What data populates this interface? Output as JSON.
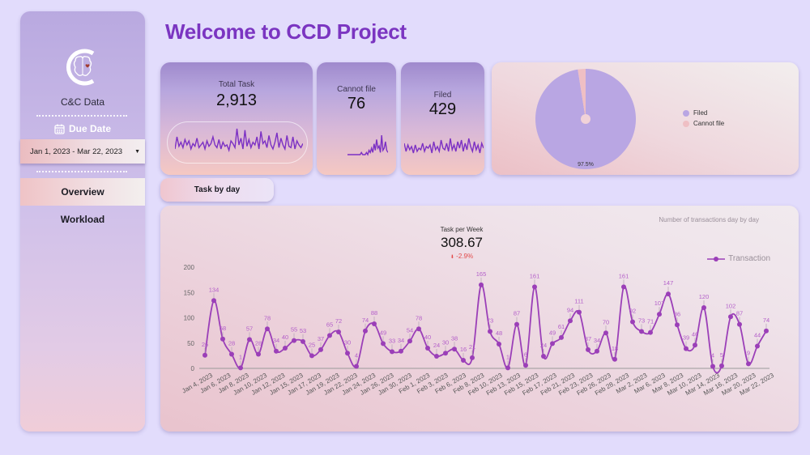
{
  "sidebar": {
    "brand": "C&C Data",
    "logo_icon": "brain-c-logo-icon",
    "due_date_label": "Due Date",
    "date_range": "Jan 1, 2023 - Mar 22, 2023",
    "nav": [
      {
        "label": "Overview",
        "active": true
      },
      {
        "label": "Workload",
        "active": false
      }
    ]
  },
  "header": {
    "title": "Welcome to CCD Project"
  },
  "kpis": {
    "total_task": {
      "label": "Total Task",
      "value": "2,913"
    },
    "cannot_file": {
      "label": "Cannot file",
      "value": "76"
    },
    "filed": {
      "label": "Filed",
      "value": "429"
    }
  },
  "pie": {
    "slices": [
      {
        "label": "Filed",
        "percent": 97.5,
        "color": "#b9a6e3"
      },
      {
        "label": "Cannot file",
        "percent": 2.5,
        "color": "#efbfc4"
      }
    ],
    "center_label": "97.5%"
  },
  "tab": {
    "label": "Task by day"
  },
  "scorecard": {
    "label": "Task per Week",
    "value": "308.67",
    "delta": "-2.9%",
    "delta_color": "#e24a4a"
  },
  "chart_note": "Number of transactions day by day",
  "colors": {
    "line": "#9b3fb8",
    "label": "#b35fc9",
    "accent": "#7b35c1"
  },
  "chart_data": {
    "type": "line",
    "title": "Number of transactions day by day",
    "xlabel": "",
    "ylabel": "",
    "ylim": [
      0,
      200
    ],
    "yticks": [
      0,
      50,
      100,
      150,
      200
    ],
    "grid": false,
    "legend": "top-right",
    "series": [
      {
        "name": "Transaction",
        "values": [
          26,
          134,
          58,
          28,
          1,
          57,
          28,
          78,
          34,
          40,
          55,
          53,
          25,
          37,
          65,
          72,
          30,
          4,
          74,
          88,
          49,
          33,
          34,
          54,
          78,
          40,
          24,
          30,
          38,
          16,
          21,
          165,
          73,
          48,
          1,
          87,
          6,
          161,
          24,
          49,
          61,
          94,
          111,
          37,
          34,
          70,
          18,
          161,
          92,
          73,
          71,
          107,
          147,
          86,
          39,
          46,
          120,
          4,
          5,
          102,
          87,
          9,
          44,
          74
        ]
      }
    ],
    "tick_labels": [
      {
        "index": 0,
        "label": "Jan 4, 2023"
      },
      {
        "index": 3,
        "label": "Jan 6, 2023"
      },
      {
        "index": 6,
        "label": "Jan 8, 2023"
      },
      {
        "index": 9,
        "label": "Jan 10, 2023"
      },
      {
        "index": 12,
        "label": "Jan 12, 2023"
      },
      {
        "index": 15,
        "label": "Jan 15, 2023"
      },
      {
        "index": 17,
        "label": "Jan 17, 2023"
      },
      {
        "index": 20,
        "label": "Jan 19, 2023"
      },
      {
        "index": 23,
        "label": "Jan 22, 2023"
      },
      {
        "index": 26,
        "label": "Jan 24, 2023"
      },
      {
        "index": 29,
        "label": "Jan 26, 2023"
      },
      {
        "index": 32,
        "label": "Jan 30, 2023"
      },
      {
        "index": 35,
        "label": "Feb 1, 2023"
      },
      {
        "index": 38,
        "label": "Feb 3, 2023"
      },
      {
        "index": 40,
        "label": "Feb 6, 2023"
      },
      {
        "index": 43,
        "label": "Feb 8, 2023"
      },
      {
        "index": 46,
        "label": "Feb 10, 2023"
      },
      {
        "index": 49,
        "label": "Feb 13, 2023"
      },
      {
        "index": 52,
        "label": "Feb 15, 2023"
      },
      {
        "index": 55,
        "label": "Feb 17, 2023"
      },
      {
        "index": 58,
        "label": "Feb 21, 2023"
      },
      {
        "index": 61,
        "label": "Feb 23, 2023"
      },
      {
        "index": 63,
        "label": "Feb 26, 2023"
      }
    ],
    "tick_labels_full": [
      "Jan 4, 2023",
      "Jan 6, 2023",
      "Jan 8, 2023",
      "Jan 10, 2023",
      "Jan 12, 2023",
      "Jan 15, 2023",
      "Jan 17, 2023",
      "Jan 19, 2023",
      "Jan 22, 2023",
      "Jan 24, 2023",
      "Jan 26, 2023",
      "Jan 30, 2023",
      "Feb 1, 2023",
      "Feb 3, 2023",
      "Feb 6, 2023",
      "Feb 8, 2023",
      "Feb 10, 2023",
      "Feb 13, 2023",
      "Feb 15, 2023",
      "Feb 17, 2023",
      "Feb 21, 2023",
      "Feb 23, 2023",
      "Feb 26, 2023",
      "Feb 28, 2023",
      "Mar 2, 2023",
      "Mar 6, 2023",
      "Mar 8, 2023",
      "Mar 10, 2023",
      "Mar 14, 2023",
      "Mar 16, 2023",
      "Mar 20, 2023",
      "Mar 22, 2023"
    ]
  },
  "sparklines": {
    "total_task": [
      3,
      12,
      5,
      8,
      4,
      10,
      6,
      9,
      3,
      7,
      5,
      11,
      4,
      6,
      8,
      3,
      9,
      5,
      7,
      12,
      6,
      4,
      10,
      3,
      8,
      5,
      6,
      2,
      9,
      7,
      4,
      18,
      6,
      11,
      3,
      17,
      5,
      10,
      4,
      8,
      6,
      12,
      3,
      16,
      7,
      9,
      4,
      13,
      6,
      3,
      8,
      15,
      4,
      11,
      6,
      3,
      13,
      5,
      4,
      12,
      3,
      9,
      6,
      4,
      7
    ],
    "cannot_file": [
      0,
      0,
      0,
      0,
      0,
      0,
      0,
      0,
      0,
      0,
      0,
      1,
      0,
      0,
      0,
      1,
      0,
      2,
      1,
      3,
      1,
      5,
      2,
      7,
      3,
      4,
      1,
      9,
      2,
      3,
      6,
      2,
      1
    ],
    "filed": [
      8,
      3,
      7,
      4,
      6,
      2,
      7,
      3,
      5,
      4,
      8,
      3,
      6,
      5,
      7,
      2,
      9,
      4,
      6,
      3,
      10,
      5,
      4,
      8,
      3,
      11,
      4,
      7,
      3,
      9,
      5,
      10,
      3,
      8,
      4,
      11,
      6,
      3,
      9,
      4,
      7,
      2,
      8,
      5
    ]
  }
}
